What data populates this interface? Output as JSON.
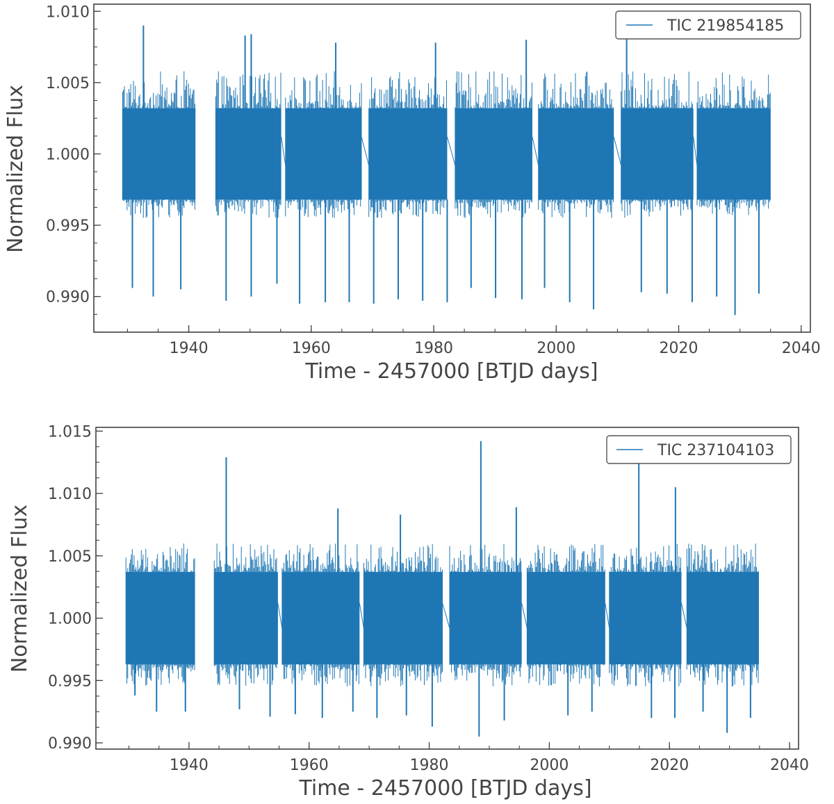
{
  "chart_data": [
    {
      "type": "line",
      "xlabel": "Time - 2457000 [BTJD days]",
      "ylabel": "Normalized Flux",
      "xlim": [
        1924.5,
        2041.5
      ],
      "ylim": [
        0.9875,
        1.0105
      ],
      "xticks": [
        1940,
        1960,
        1980,
        2000,
        2020,
        2040
      ],
      "xtick_labels": [
        "1940",
        "1960",
        "1980",
        "2000",
        "2020",
        "2040"
      ],
      "yticks": [
        0.99,
        0.995,
        1.0,
        1.005,
        1.01
      ],
      "ytick_labels": [
        "0.990",
        "0.995",
        "1.000",
        "1.005",
        "1.010"
      ],
      "legend_position": "top-right",
      "grid": false,
      "series": [
        {
          "name": "TIC 219854185",
          "color": "#1f77b4",
          "segments": [
            [
              1929.2,
              1941.1
            ],
            [
              1944.4,
              1955.1
            ],
            [
              1955.8,
              1968.2
            ],
            [
              1969.4,
              1982.2
            ],
            [
              1983.5,
              1996.1
            ],
            [
              1997.1,
              2009.4
            ],
            [
              2010.6,
              2022.4
            ],
            [
              2023.0,
              2035.0
            ]
          ],
          "baseline_range": [
            0.9968,
            1.0032
          ],
          "noise_envelope": [
            0.9955,
            1.0058
          ],
          "spikes": [
            {
              "x": 1930.8,
              "y": 0.9906
            },
            {
              "x": 1932.6,
              "y": 1.009
            },
            {
              "x": 1934.2,
              "y": 0.99
            },
            {
              "x": 1938.7,
              "y": 0.9905
            },
            {
              "x": 1946.1,
              "y": 0.9897
            },
            {
              "x": 1949.2,
              "y": 1.0083
            },
            {
              "x": 1950.2,
              "y": 1.0084
            },
            {
              "x": 1950.2,
              "y": 0.99
            },
            {
              "x": 1954.4,
              "y": 0.9909
            },
            {
              "x": 1958.1,
              "y": 0.9895
            },
            {
              "x": 1962.3,
              "y": 0.9896
            },
            {
              "x": 1964.0,
              "y": 1.0078
            },
            {
              "x": 1966.2,
              "y": 0.9896
            },
            {
              "x": 1970.2,
              "y": 0.9895
            },
            {
              "x": 1974.2,
              "y": 0.9898
            },
            {
              "x": 1978.2,
              "y": 0.9897
            },
            {
              "x": 1980.3,
              "y": 1.0078
            },
            {
              "x": 1982.2,
              "y": 0.9896
            },
            {
              "x": 1986.1,
              "y": 0.9906
            },
            {
              "x": 1990.1,
              "y": 0.9899
            },
            {
              "x": 1994.4,
              "y": 0.9898
            },
            {
              "x": 1995.1,
              "y": 1.008
            },
            {
              "x": 1998.1,
              "y": 0.9906
            },
            {
              "x": 2002.2,
              "y": 0.9896
            },
            {
              "x": 2006.1,
              "y": 0.9891
            },
            {
              "x": 2011.5,
              "y": 1.0082
            },
            {
              "x": 2013.9,
              "y": 0.9903
            },
            {
              "x": 2018.1,
              "y": 0.9902
            },
            {
              "x": 2022.2,
              "y": 0.9896
            },
            {
              "x": 2026.2,
              "y": 0.99
            },
            {
              "x": 2029.2,
              "y": 0.9887
            },
            {
              "x": 2033.1,
              "y": 0.9902
            }
          ]
        }
      ]
    },
    {
      "type": "line",
      "xlabel": "Time - 2457000 [BTJD days]",
      "ylabel": "Normalized Flux",
      "xlim": [
        1924.5,
        2041.5
      ],
      "ylim": [
        0.9895,
        1.0153
      ],
      "xticks": [
        1940,
        1960,
        1980,
        2000,
        2020,
        2040
      ],
      "xtick_labels": [
        "1940",
        "1960",
        "1980",
        "2000",
        "2020",
        "2040"
      ],
      "yticks": [
        0.99,
        0.995,
        1.0,
        1.005,
        1.01,
        1.015
      ],
      "ytick_labels": [
        "0.990",
        "0.995",
        "1.000",
        "1.005",
        "1.010",
        "1.015"
      ],
      "legend_position": "top-right",
      "grid": false,
      "series": [
        {
          "name": "TIC 237104103",
          "color": "#1f77b4",
          "segments": [
            [
              1929.5,
              1941.0
            ],
            [
              1944.2,
              1954.8
            ],
            [
              1955.5,
              1968.4
            ],
            [
              1969.1,
              1982.2
            ],
            [
              1983.4,
              1995.4
            ],
            [
              1996.3,
              2009.3
            ],
            [
              2010.0,
              2022.0
            ],
            [
              2022.9,
              2034.9
            ]
          ],
          "baseline_range": [
            0.9963,
            1.0037
          ],
          "noise_envelope": [
            0.9945,
            1.006
          ],
          "spikes": [
            {
              "x": 1946.2,
              "y": 1.0129
            },
            {
              "x": 1964.8,
              "y": 1.0088
            },
            {
              "x": 1975.2,
              "y": 1.0083
            },
            {
              "x": 1988.6,
              "y": 1.0142
            },
            {
              "x": 1994.5,
              "y": 1.0089
            },
            {
              "x": 2014.9,
              "y": 1.0141
            },
            {
              "x": 2021.0,
              "y": 1.0105
            },
            {
              "x": 1931.0,
              "y": 0.9938
            },
            {
              "x": 1934.6,
              "y": 0.9925
            },
            {
              "x": 1939.4,
              "y": 0.9925
            },
            {
              "x": 1948.4,
              "y": 0.9927
            },
            {
              "x": 1953.5,
              "y": 0.9921
            },
            {
              "x": 1957.7,
              "y": 0.9923
            },
            {
              "x": 1962.2,
              "y": 0.992
            },
            {
              "x": 1967.3,
              "y": 0.9925
            },
            {
              "x": 1971.3,
              "y": 0.992
            },
            {
              "x": 1976.2,
              "y": 0.9922
            },
            {
              "x": 1980.5,
              "y": 0.9913
            },
            {
              "x": 1988.3,
              "y": 0.9905
            },
            {
              "x": 1992.5,
              "y": 0.9918
            },
            {
              "x": 2003.1,
              "y": 0.9922
            },
            {
              "x": 2007.1,
              "y": 0.9925
            },
            {
              "x": 2017.0,
              "y": 0.992
            },
            {
              "x": 2020.9,
              "y": 0.992
            },
            {
              "x": 2025.6,
              "y": 0.9925
            },
            {
              "x": 2029.6,
              "y": 0.9908
            },
            {
              "x": 2033.5,
              "y": 0.992
            }
          ]
        }
      ]
    }
  ]
}
